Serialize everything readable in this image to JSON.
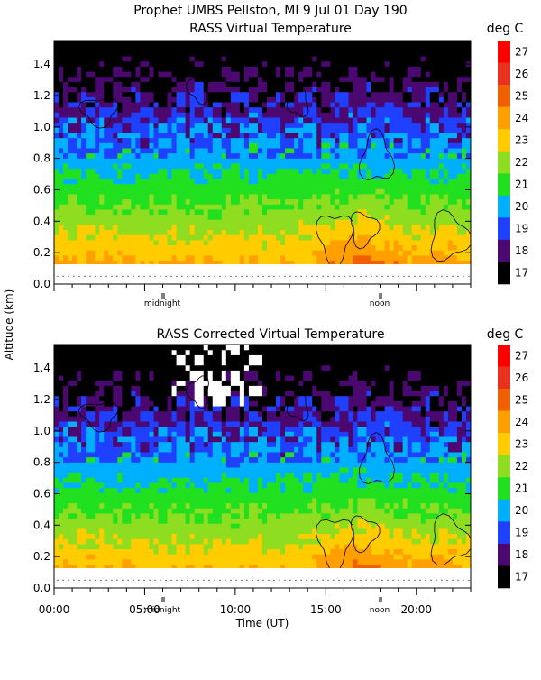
{
  "header": {
    "line1": "Prophet  UMBS Pellston, MI   9 Jul 01 Day 190"
  },
  "colorbar": {
    "unit": "deg C",
    "levels": [
      27,
      26,
      25,
      24,
      23,
      22,
      21,
      20,
      19,
      18,
      17
    ],
    "colors": [
      "#ff0000",
      "#e8321e",
      "#f06000",
      "#ff9f00",
      "#ffcc00",
      "#8fdd20",
      "#20e020",
      "#00b0ff",
      "#2040ff",
      "#4a0870",
      "#000000"
    ]
  },
  "chart_data": [
    {
      "type": "heatmap",
      "title": "RASS Virtual Temperature",
      "ylabel": "Altitude (km)",
      "xlabel": "",
      "ylim": [
        0,
        1.55
      ],
      "xlim": [
        0,
        23
      ],
      "yticks": [
        "0.0",
        "0.2",
        "0.4",
        "0.6",
        "0.8",
        "1.0",
        "1.2",
        "1.4"
      ],
      "marker_labels": [
        "midnight",
        "noon"
      ],
      "legend_title": "deg C",
      "value_levels": [
        17,
        18,
        19,
        20,
        21,
        22,
        23,
        24,
        25,
        26,
        27
      ],
      "data_altitude_range_km": [
        0.12,
        1.55
      ]
    },
    {
      "type": "heatmap",
      "title": "RASS Corrected Virtual Temperature",
      "ylabel": "Altitude (km)",
      "xlabel": "Time (UT)",
      "ylim": [
        0,
        1.55
      ],
      "xlim": [
        0,
        23
      ],
      "yticks": [
        "0.0",
        "0.2",
        "0.4",
        "0.6",
        "0.8",
        "1.0",
        "1.2",
        "1.4"
      ],
      "xticks": [
        "00:00",
        "05:00",
        "10:00",
        "15:00",
        "20:00"
      ],
      "marker_labels": [
        "midnight",
        "noon"
      ],
      "legend_title": "deg C",
      "value_levels": [
        17,
        18,
        19,
        20,
        21,
        22,
        23,
        24,
        25,
        26,
        27
      ],
      "data_altitude_range_km": [
        0.12,
        1.55
      ]
    }
  ]
}
